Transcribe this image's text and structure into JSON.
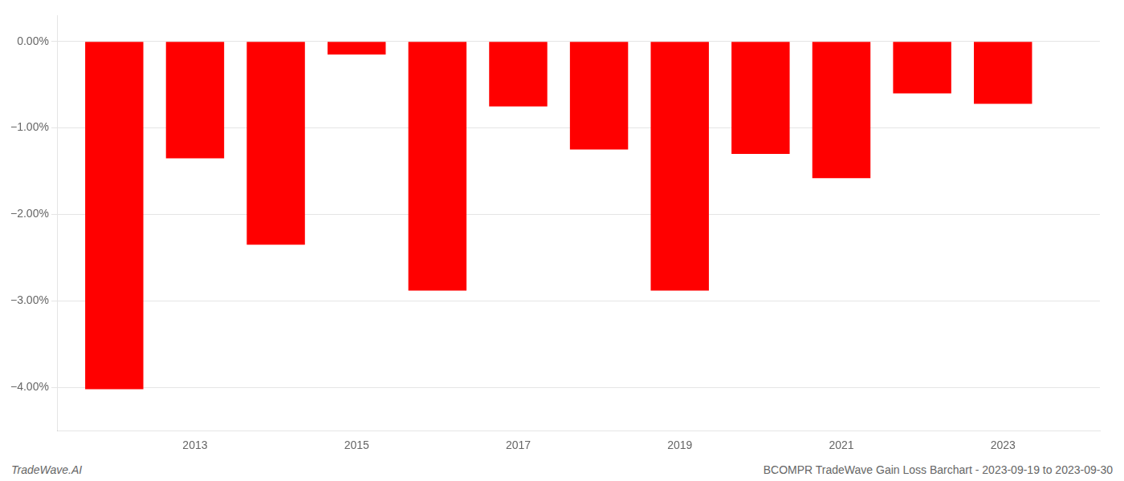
{
  "chart_data": {
    "type": "bar",
    "x": [
      2012,
      2013,
      2014,
      2015,
      2016,
      2017,
      2018,
      2019,
      2020,
      2021,
      2022,
      2023
    ],
    "values": [
      -4.02,
      -1.35,
      -2.35,
      -0.15,
      -2.88,
      -0.75,
      -1.25,
      -2.88,
      -1.3,
      -1.58,
      -0.6,
      -0.72
    ],
    "color": "#ff0000",
    "xlim": [
      2011.3,
      2024.2
    ],
    "xticks": [
      2013,
      2015,
      2017,
      2019,
      2021,
      2023
    ],
    "ylim": [
      -4.5,
      0.3
    ],
    "yticks": [
      {
        "value": 0.0,
        "label": "0.00%"
      },
      {
        "value": -1.0,
        "label": "−1.00%"
      },
      {
        "value": -2.0,
        "label": "−2.00%"
      },
      {
        "value": -3.0,
        "label": "−3.00%"
      },
      {
        "value": -4.0,
        "label": "−4.00%"
      }
    ],
    "grid": true,
    "annotations": [
      "TradeWave.AI",
      "BCOMPR TradeWave Gain Loss Barchart - 2023-09-19 to 2023-09-30"
    ]
  }
}
